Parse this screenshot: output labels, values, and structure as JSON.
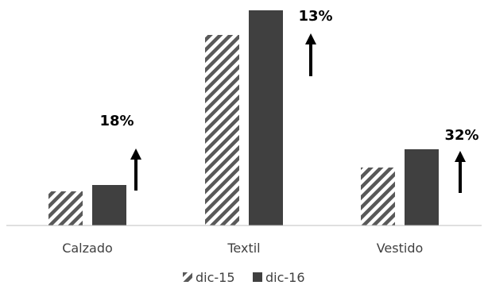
{
  "chart_data": {
    "type": "bar",
    "title": "",
    "xlabel": "",
    "ylabel": "",
    "categories": [
      "Calzado",
      "Textil",
      "Vestido"
    ],
    "series": [
      {
        "name": "dic-15",
        "values": [
          43,
          240,
          73
        ],
        "pattern": "diagonal-hatch",
        "color": "#595959"
      },
      {
        "name": "dic-16",
        "values": [
          51,
          271,
          96
        ],
        "pattern": "solid",
        "color": "#404040"
      }
    ],
    "ylim": [
      0,
      280
    ],
    "grid": false,
    "legend_position": "bottom",
    "annotations": [
      {
        "category": "Calzado",
        "text": "18%",
        "arrow": "up"
      },
      {
        "category": "Textil",
        "text": "13%",
        "arrow": "up"
      },
      {
        "category": "Vestido",
        "text": "32%",
        "arrow": "up"
      }
    ]
  }
}
